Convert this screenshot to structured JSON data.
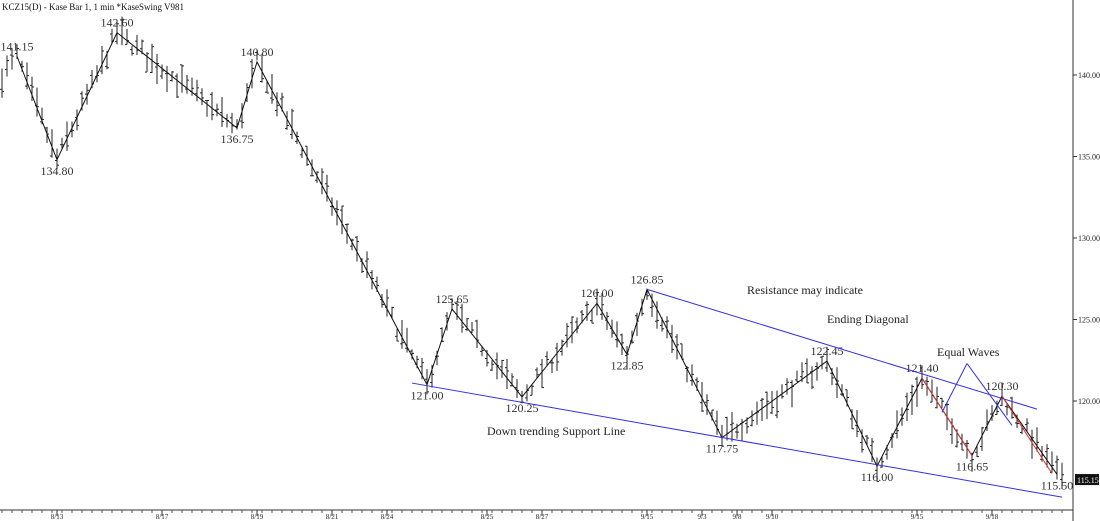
{
  "header": {
    "title": "KCZ15(D) - Kase Bar 1, 1 min  *KaseSwing  V981"
  },
  "chart_data": {
    "type": "bar",
    "subtype": "price-bar (OHLC) chart with swing zigzag",
    "ylim": [
      113.5,
      144.5
    ],
    "y_ticks": [
      "140.00",
      "135.00",
      "130.00",
      "125.00",
      "120.00"
    ],
    "y_tick_values": [
      140,
      135,
      130,
      125,
      120
    ],
    "x_ticks": [
      "8/13",
      "8/17",
      "8/19",
      "8/21",
      "8/24",
      "8/25",
      "8/27",
      "9/15",
      "9/3",
      "9/8",
      "9/10",
      "9/15",
      "9/18"
    ],
    "x_tick_bar_index": [
      11,
      32,
      51,
      66,
      77,
      97,
      108,
      129,
      140,
      147,
      154,
      183,
      198
    ],
    "last_price": "115.15",
    "swings": [
      {
        "bar": 3,
        "price": 141.15,
        "label": "141.15",
        "pos": "above"
      },
      {
        "bar": 11,
        "price": 134.8,
        "label": "134.80",
        "pos": "below"
      },
      {
        "bar": 23,
        "price": 142.6,
        "label": "142.60",
        "pos": "above"
      },
      {
        "bar": 47,
        "price": 136.75,
        "label": "136.75",
        "pos": "below"
      },
      {
        "bar": 51,
        "price": 140.8,
        "label": "140.80",
        "pos": "above"
      },
      {
        "bar": 85,
        "price": 121.0,
        "label": "121.00",
        "pos": "below"
      },
      {
        "bar": 90,
        "price": 125.65,
        "label": "125.65",
        "pos": "above"
      },
      {
        "bar": 104,
        "price": 120.25,
        "label": "120.25",
        "pos": "below"
      },
      {
        "bar": 119,
        "price": 126.0,
        "label": "126.00",
        "pos": "above"
      },
      {
        "bar": 125,
        "price": 122.85,
        "label": "122.85",
        "pos": "below"
      },
      {
        "bar": 129,
        "price": 126.85,
        "label": "126.85",
        "pos": "above"
      },
      {
        "bar": 144,
        "price": 117.75,
        "label": "117.75",
        "pos": "below"
      },
      {
        "bar": 165,
        "price": 122.45,
        "label": "122.45",
        "pos": "above"
      },
      {
        "bar": 175,
        "price": 116.0,
        "label": "116.00",
        "pos": "below"
      },
      {
        "bar": 184,
        "price": 121.4,
        "label": "121.40",
        "pos": "above"
      },
      {
        "bar": 194,
        "price": 116.65,
        "label": "116.65",
        "pos": "below"
      },
      {
        "bar": 200,
        "price": 120.3,
        "label": "120.30",
        "pos": "above"
      },
      {
        "bar": 211,
        "price": 115.5,
        "label": "115.50",
        "pos": "below"
      }
    ],
    "trendlines": [
      {
        "name": "support",
        "color": "#3030e0",
        "from": {
          "bar": 82,
          "price": 121.1
        },
        "to": {
          "bar": 212,
          "price": 114.1
        }
      },
      {
        "name": "resistance",
        "color": "#3030e0",
        "from": {
          "bar": 129,
          "price": 126.85
        },
        "to": {
          "bar": 207,
          "price": 119.5
        }
      },
      {
        "name": "equal-wave-1",
        "color": "#e03030",
        "from": {
          "bar": 184,
          "price": 121.4
        },
        "to": {
          "bar": 194,
          "price": 116.65
        }
      },
      {
        "name": "equal-wave-2",
        "color": "#e03030",
        "from": {
          "bar": 200,
          "price": 120.3
        },
        "to": {
          "bar": 210,
          "price": 115.55
        }
      },
      {
        "name": "equal-waves-pointer-a",
        "color": "#3030e0",
        "from": {
          "bar": 188,
          "price": 119.3
        },
        "to": {
          "bar": 193,
          "price": 122.3
        }
      },
      {
        "name": "equal-waves-pointer-b",
        "color": "#3030e0",
        "from": {
          "bar": 193,
          "price": 122.3
        },
        "to": {
          "bar": 202,
          "price": 118.5
        }
      }
    ],
    "annotations": [
      {
        "text": "Resistance may indicate",
        "bar": 149,
        "price": 126.55
      },
      {
        "text": "Ending Diagonal",
        "bar": 165,
        "price": 124.8
      },
      {
        "text": "Equal Waves",
        "bar": 187,
        "price": 122.75
      },
      {
        "text": "Down trending Support Line",
        "bar": 97,
        "price": 117.9
      }
    ],
    "colors": {
      "bars": "#222222",
      "zigzag": "#111111",
      "axis": "#333333"
    }
  }
}
